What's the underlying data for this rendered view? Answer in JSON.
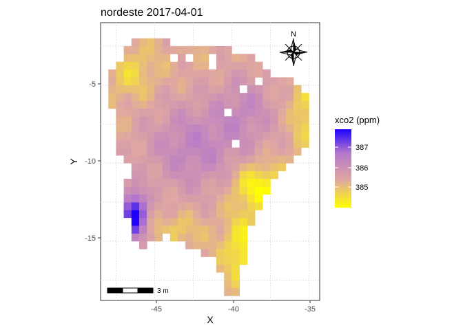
{
  "chart_data": {
    "type": "heatmap",
    "title": "nordeste 2017-04-01",
    "xlabel": "X",
    "ylabel": "Y",
    "xlim": [
      -48.5,
      -34.3
    ],
    "ylim": [
      -18.8,
      -1.0
    ],
    "x_ticks": [
      -45,
      -40,
      -35
    ],
    "y_ticks": [
      -5,
      -10,
      -15
    ],
    "x_tick_labels": [
      "-45",
      "-40",
      "-35"
    ],
    "y_tick_labels": [
      "-5",
      "-10",
      "-15"
    ],
    "grid": true,
    "legend": {
      "title": "xco2 (ppm)",
      "position": "right",
      "range": [
        384.6,
        387.6
      ],
      "breaks": [
        387,
        386,
        385
      ],
      "break_labels": [
        "387",
        "386",
        "385"
      ],
      "colors": [
        "#FFFF00",
        "#E0A8A0",
        "#B477CC",
        "#1E00FF"
      ]
    },
    "cell_size_deg": 0.5,
    "scale_bar_label": "3 m",
    "north_arrow_label": "N"
  }
}
